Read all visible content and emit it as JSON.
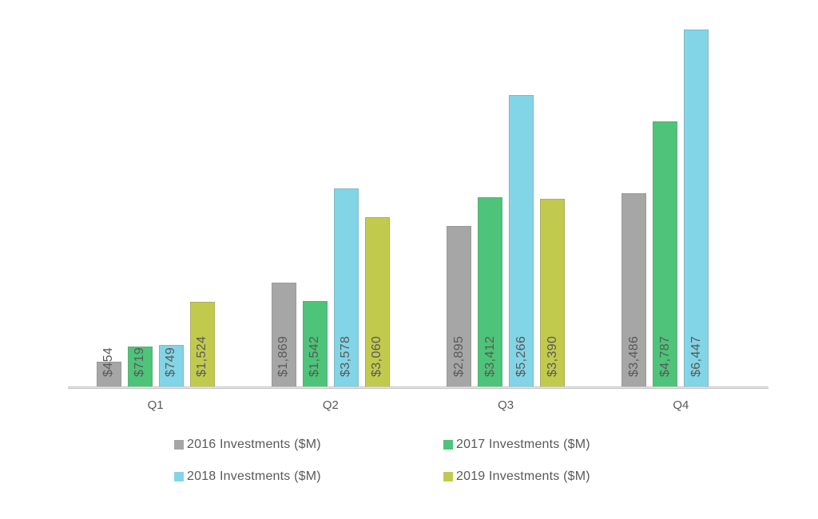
{
  "chart_data": {
    "type": "bar",
    "title": "",
    "categories": [
      "Q1",
      "Q2",
      "Q3",
      "Q4"
    ],
    "series": [
      {
        "name": "2016 Investments ($M)",
        "color": "#a6a6a6",
        "values": [
          454,
          1869,
          2895,
          3486
        ],
        "labels": [
          "$454",
          "$1,869",
          "$2,895",
          "$3,486"
        ]
      },
      {
        "name": "2017 Investments ($M)",
        "color": "#4dc479",
        "values": [
          719,
          1542,
          3412,
          4787
        ],
        "labels": [
          "$719",
          "$1,542",
          "$3,412",
          "$4,787"
        ]
      },
      {
        "name": "2018 Investments ($M)",
        "color": "#82d5e6",
        "values": [
          749,
          3578,
          5266,
          6447
        ],
        "labels": [
          "$749",
          "$3,578",
          "$5,266",
          "$6,447"
        ]
      },
      {
        "name": "2019 Investments ($M)",
        "color": "#c2ca4e",
        "values": [
          1524,
          3060,
          3390,
          null
        ],
        "labels": [
          "$1,524",
          "$3,060",
          "$3,390",
          null
        ]
      }
    ],
    "ylim": [
      0,
      6447
    ],
    "grid": false,
    "y_axis_visible": false,
    "legend_position": "bottom",
    "value_label_rotation": -90,
    "value_label_color": "#595959",
    "axis_label_color": "#595959",
    "axis_line_color": "#c5c5c5",
    "background": "#ffffff"
  }
}
